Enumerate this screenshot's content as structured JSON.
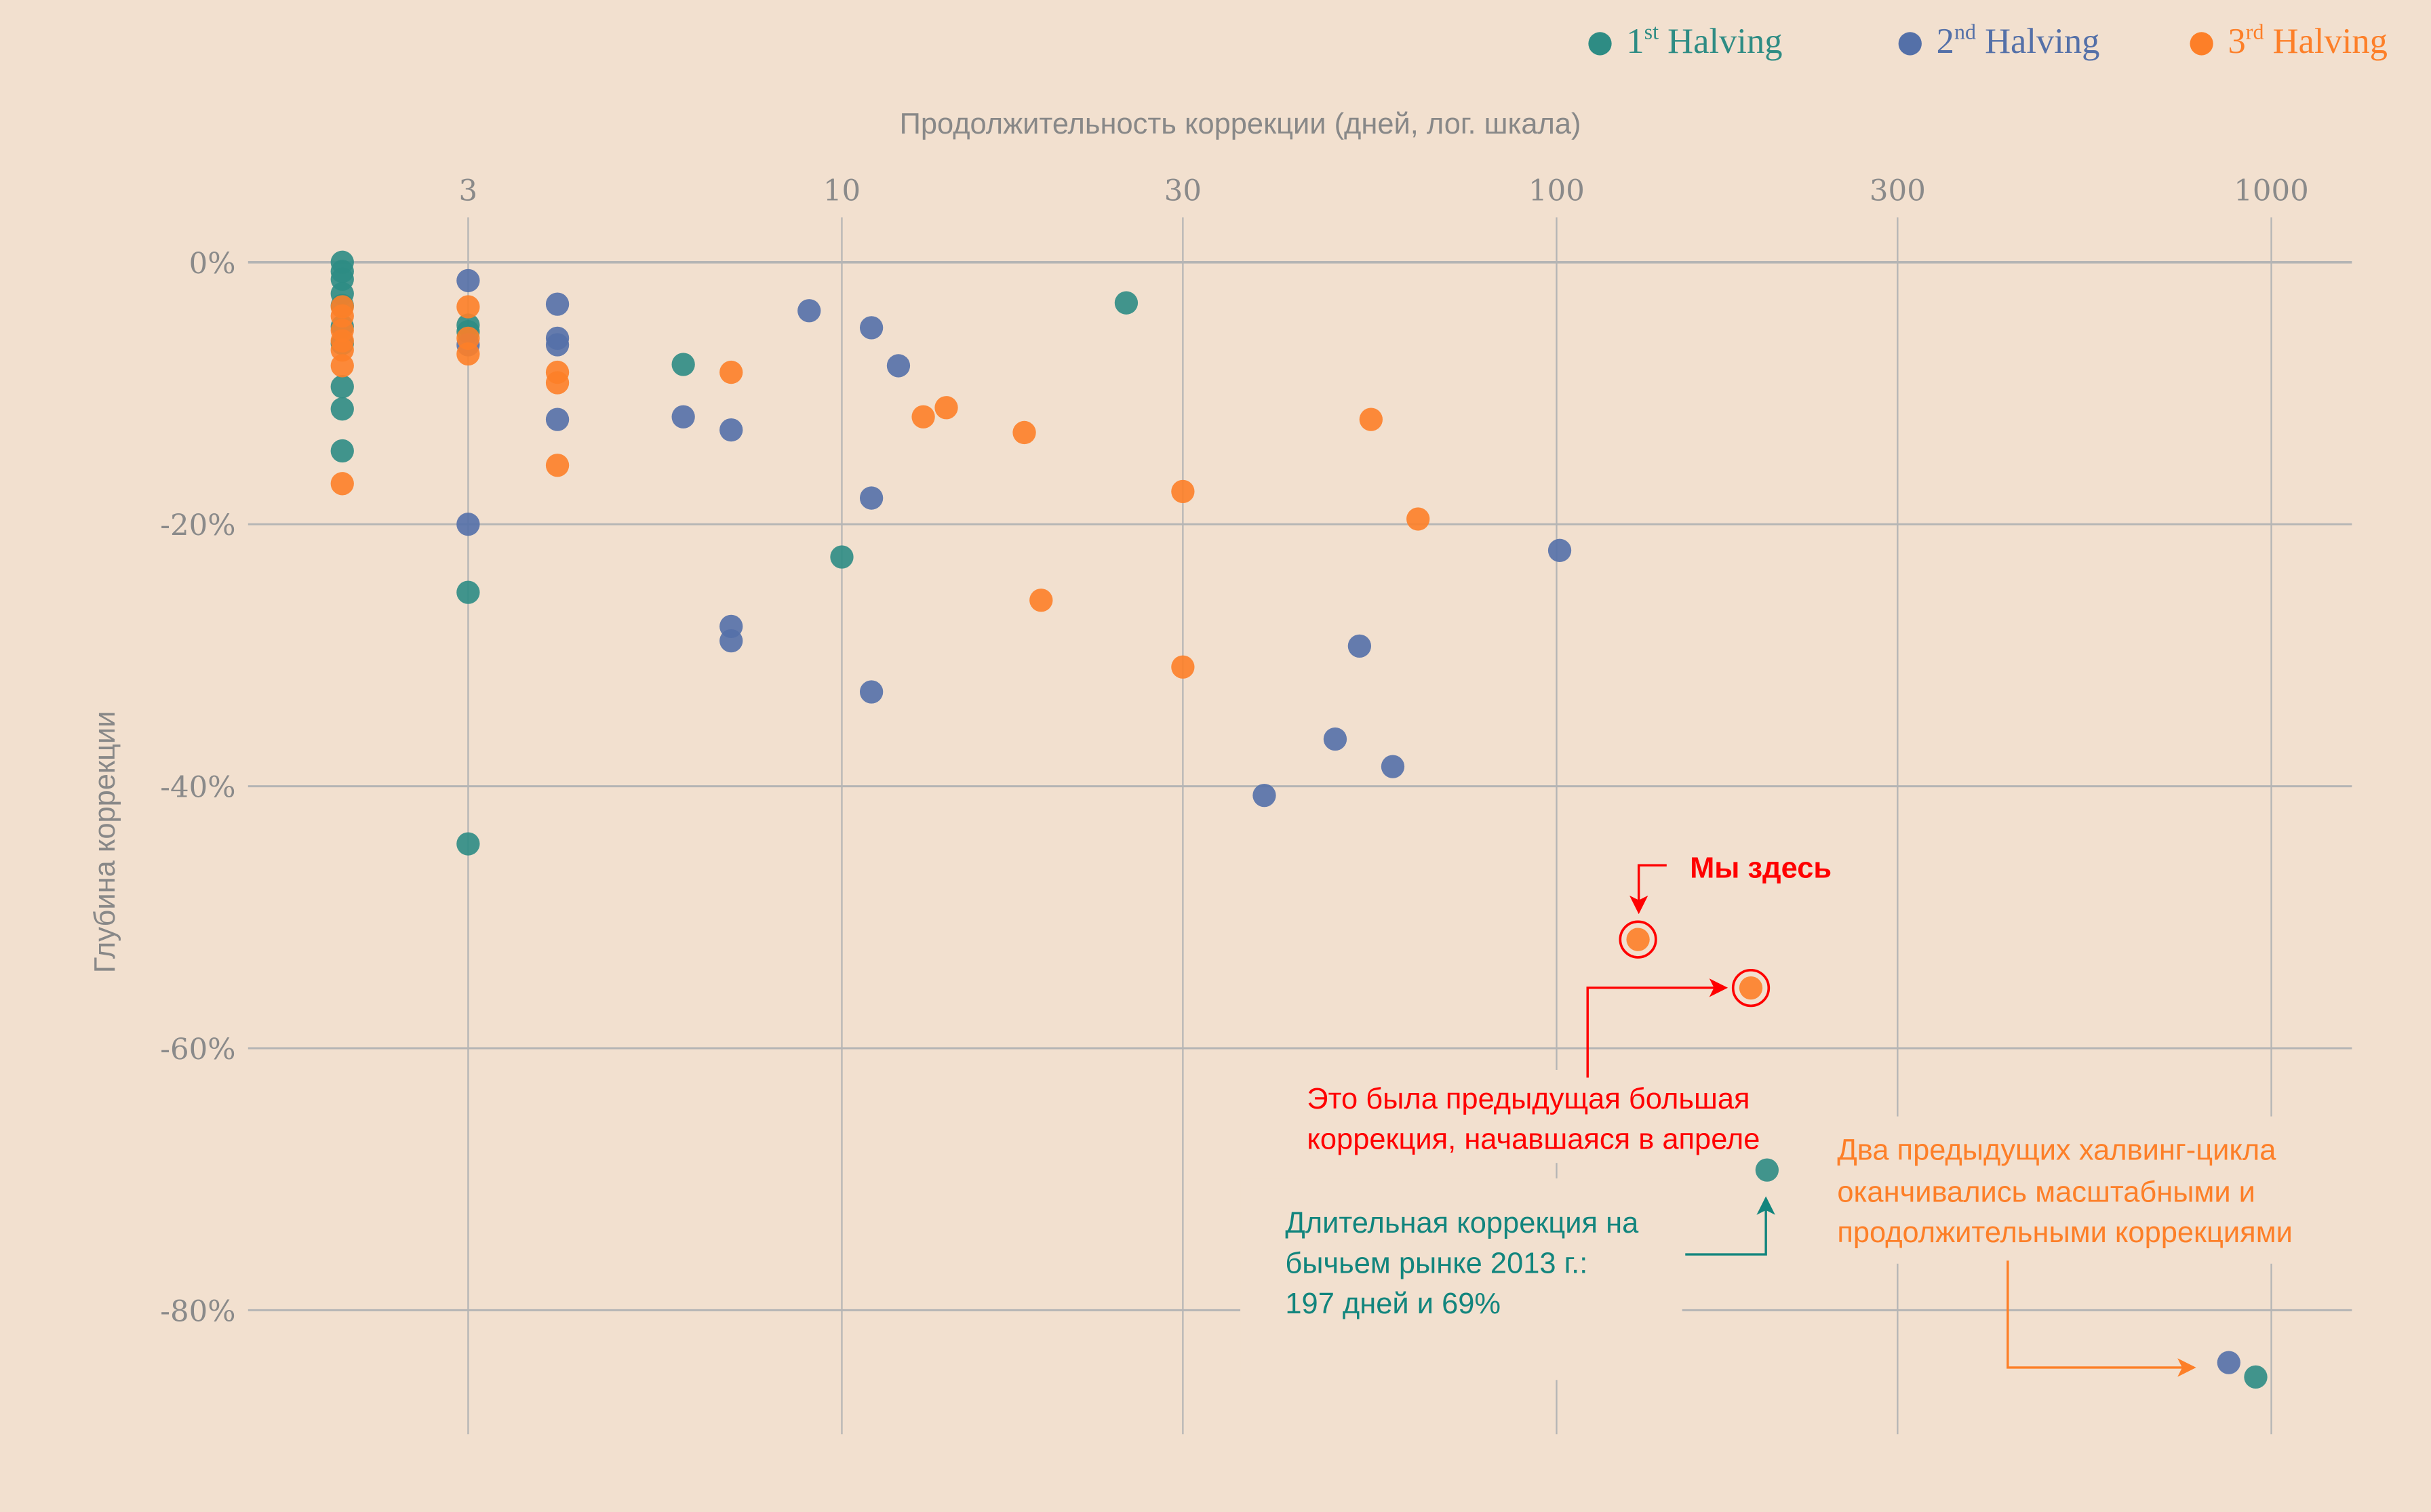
{
  "legend": [
    {
      "num": "1",
      "sup": "st",
      "label": " Halving",
      "color": "#2e8c84"
    },
    {
      "num": "2",
      "sup": "nd",
      "label": " Halving",
      "color": "#5470a8"
    },
    {
      "num": "3",
      "sup": "rd",
      "label": " Halving",
      "color": "#fd7f28"
    }
  ],
  "annotations": {
    "here": "Мы здесь",
    "prev_line1": "Это была предыдущая большая",
    "prev_line2": "коррекция, начавшаяся в апреле",
    "bull_line1": "Длительная коррекция на",
    "bull_line2": "бычьем рынке 2013 г.:",
    "bull_line3": "197 дней и 69%",
    "two_line1": "Два предыдущих халвинг-цикла",
    "two_line2": "оканчивались масштабными и",
    "two_line3": "продолжительными коррекциями",
    "red": "#ff0000",
    "teal": "#12857d",
    "orange": "#fd7f28"
  },
  "chart_data": {
    "type": "scatter",
    "title": "",
    "xlabel": "Продолжительность коррекции (дней, лог. шкала)",
    "ylabel": "Глубина коррекции",
    "xscale": "log",
    "xlim": [
      1,
      1100
    ],
    "ylim": [
      -89.5,
      3.5
    ],
    "xticks": [
      3,
      10,
      30,
      100,
      300,
      1000
    ],
    "xtick_labels": [
      "3",
      "10",
      "30",
      "100",
      "300",
      "1000"
    ],
    "yticks": [
      0,
      -20,
      -40,
      -60,
      -80
    ],
    "ytick_labels": [
      "0%",
      "-20%",
      "-40%",
      "-60%",
      "-80%"
    ],
    "grid": true,
    "legend_position": "top-right",
    "series": [
      {
        "name": "1st Halving",
        "color": "#2e8c84",
        "points": [
          [
            2,
            0
          ],
          [
            2,
            -0.7
          ],
          [
            2,
            -1.3
          ],
          [
            2,
            -2.4
          ],
          [
            2,
            -3.3
          ],
          [
            2,
            -4.9
          ],
          [
            2,
            -6.2
          ],
          [
            2,
            -9.5
          ],
          [
            2,
            -11.2
          ],
          [
            2,
            -14.4
          ],
          [
            3,
            -4.8
          ],
          [
            3,
            -5.3
          ],
          [
            3,
            -25.2
          ],
          [
            3,
            -44.4
          ],
          [
            6,
            -7.8
          ],
          [
            10,
            -22.5
          ],
          [
            25,
            -3.1
          ],
          [
            197,
            -69.3
          ],
          [
            951,
            -85.1
          ]
        ]
      },
      {
        "name": "2nd Halving",
        "color": "#5470a8",
        "points": [
          [
            3,
            -1.4
          ],
          [
            3,
            -6.3
          ],
          [
            3,
            -20
          ],
          [
            4,
            -3.2
          ],
          [
            4,
            -5.8
          ],
          [
            4,
            -6.3
          ],
          [
            4,
            -12
          ],
          [
            6,
            -11.8
          ],
          [
            7,
            -12.8
          ],
          [
            7,
            -27.8
          ],
          [
            7,
            -28.9
          ],
          [
            9,
            -3.7
          ],
          [
            11,
            -5
          ],
          [
            11,
            -18
          ],
          [
            11,
            -32.8
          ],
          [
            12,
            -7.9
          ],
          [
            39,
            -40.7
          ],
          [
            49,
            -36.4
          ],
          [
            53,
            -29.3
          ],
          [
            59,
            -38.5
          ],
          [
            101,
            -22
          ],
          [
            872,
            -84
          ]
        ]
      },
      {
        "name": "3rd Halving",
        "color": "#fd7f28",
        "points": [
          [
            2,
            -3.4
          ],
          [
            2,
            -4.1
          ],
          [
            2,
            -5.2
          ],
          [
            2,
            -6
          ],
          [
            2,
            -6.7
          ],
          [
            2,
            -7.9
          ],
          [
            2,
            -16.9
          ],
          [
            3,
            -3.4
          ],
          [
            3,
            -5.8
          ],
          [
            3,
            -7
          ],
          [
            4,
            -8.4
          ],
          [
            4,
            -9.2
          ],
          [
            4,
            -15.5
          ],
          [
            7,
            -8.4
          ],
          [
            13,
            -11.8
          ],
          [
            14,
            -11.1
          ],
          [
            18,
            -13
          ],
          [
            19,
            -25.8
          ],
          [
            30,
            -17.5
          ],
          [
            30,
            -30.9
          ],
          [
            55,
            -12
          ],
          [
            64,
            -19.6
          ],
          [
            130,
            -51.7
          ],
          [
            187,
            -55.4
          ]
        ]
      }
    ],
    "highlighted_points": [
      [
        130,
        -51.7
      ],
      [
        187,
        -55.4
      ]
    ]
  }
}
